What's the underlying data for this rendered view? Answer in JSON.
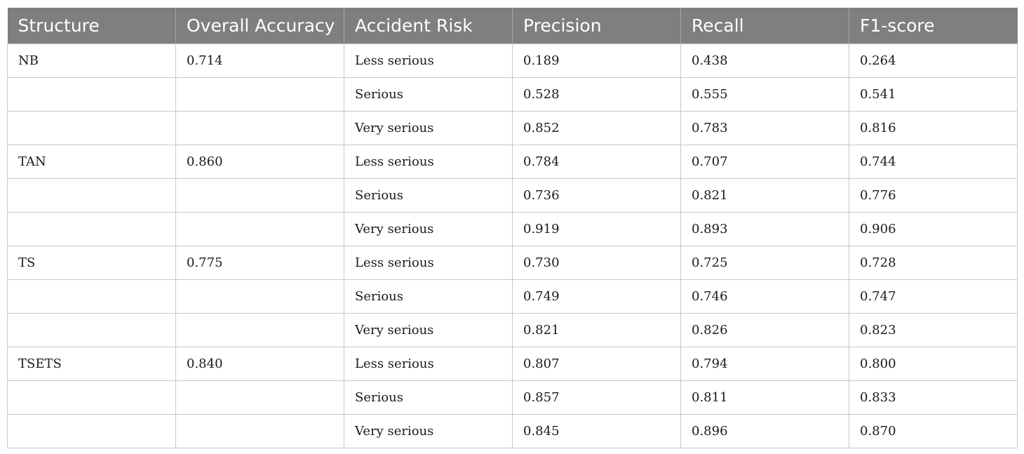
{
  "table": {
    "headers": [
      "Structure",
      "Overall Accuracy",
      "Accident Risk",
      "Precision",
      "Recall",
      "F1-score"
    ],
    "rows": [
      [
        "NB",
        "0.714",
        "Less serious",
        "0.189",
        "0.438",
        "0.264"
      ],
      [
        "",
        "",
        "Serious",
        "0.528",
        "0.555",
        "0.541"
      ],
      [
        "",
        "",
        "Very serious",
        "0.852",
        "0.783",
        "0.816"
      ],
      [
        "TAN",
        "0.860",
        "Less serious",
        "0.784",
        "0.707",
        "0.744"
      ],
      [
        "",
        "",
        "Serious",
        "0.736",
        "0.821",
        "0.776"
      ],
      [
        "",
        "",
        "Very serious",
        "0.919",
        "0.893",
        "0.906"
      ],
      [
        "TS",
        "0.775",
        "Less serious",
        "0.730",
        "0.725",
        "0.728"
      ],
      [
        "",
        "",
        "Serious",
        "0.749",
        "0.746",
        "0.747"
      ],
      [
        "",
        "",
        "Very serious",
        "0.821",
        "0.826",
        "0.823"
      ],
      [
        "TSETS",
        "0.840",
        "Less serious",
        "0.807",
        "0.794",
        "0.800"
      ],
      [
        "",
        "",
        "Serious",
        "0.857",
        "0.811",
        "0.833"
      ],
      [
        "",
        "",
        "Very serious",
        "0.845",
        "0.896",
        "0.870"
      ]
    ]
  }
}
